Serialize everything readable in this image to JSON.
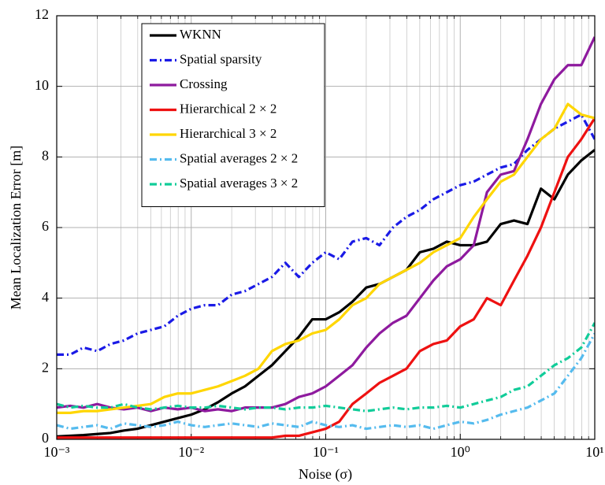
{
  "chart_data": {
    "type": "line",
    "xlabel": "Noise (σ)",
    "ylabel": "Mean Localization Error [m]",
    "xscale": "log",
    "grid": true,
    "legend": "upper left",
    "xlim": [
      0.001,
      10
    ],
    "ylim": [
      0,
      12
    ],
    "xticks": [
      {
        "value": 0.001,
        "label": "10⁻³"
      },
      {
        "value": 0.01,
        "label": "10⁻²"
      },
      {
        "value": 0.1,
        "label": "10⁻¹"
      },
      {
        "value": 1,
        "label": "10⁰"
      },
      {
        "value": 10,
        "label": "10¹"
      }
    ],
    "yticks": [
      0,
      2,
      4,
      6,
      8,
      10,
      12
    ],
    "x": [
      0.001,
      0.00126,
      0.00158,
      0.002,
      0.00251,
      0.00316,
      0.00398,
      0.00501,
      0.00631,
      0.00794,
      0.01,
      0.0126,
      0.0158,
      0.02,
      0.0251,
      0.0316,
      0.0398,
      0.0501,
      0.0631,
      0.0794,
      0.1,
      0.126,
      0.158,
      0.2,
      0.251,
      0.316,
      0.398,
      0.501,
      0.631,
      0.794,
      1,
      1.26,
      1.58,
      2,
      2.51,
      3.16,
      3.98,
      5.01,
      6.31,
      7.94,
      10
    ],
    "series": [
      {
        "name": "WKNN",
        "color": "#000000",
        "style": "solid",
        "values": [
          0.08,
          0.1,
          0.12,
          0.15,
          0.18,
          0.25,
          0.3,
          0.4,
          0.5,
          0.6,
          0.7,
          0.85,
          1.05,
          1.3,
          1.5,
          1.8,
          2.1,
          2.5,
          2.9,
          3.4,
          3.4,
          3.6,
          3.9,
          4.3,
          4.4,
          4.6,
          4.8,
          5.3,
          5.4,
          5.6,
          5.5,
          5.5,
          5.6,
          6.1,
          6.2,
          6.1,
          7.1,
          6.8,
          7.5,
          7.9,
          8.2
        ]
      },
      {
        "name": "Spatial sparsity",
        "color": "#1a1ae6",
        "style": "dashdot",
        "values": [
          2.4,
          2.4,
          2.6,
          2.5,
          2.7,
          2.8,
          3.0,
          3.1,
          3.2,
          3.5,
          3.7,
          3.8,
          3.8,
          4.1,
          4.2,
          4.4,
          4.6,
          5.0,
          4.6,
          5.0,
          5.3,
          5.1,
          5.6,
          5.7,
          5.5,
          6.0,
          6.3,
          6.5,
          6.8,
          7.0,
          7.2,
          7.3,
          7.5,
          7.7,
          7.8,
          8.2,
          8.5,
          8.8,
          9.0,
          9.2,
          8.5
        ]
      },
      {
        "name": "Crossing",
        "color": "#8e1a9e",
        "style": "solid",
        "values": [
          0.9,
          0.95,
          0.9,
          1.0,
          0.9,
          0.85,
          0.9,
          0.8,
          0.9,
          0.85,
          0.9,
          0.8,
          0.85,
          0.8,
          0.9,
          0.9,
          0.9,
          1.0,
          1.2,
          1.3,
          1.5,
          1.8,
          2.1,
          2.6,
          3.0,
          3.3,
          3.5,
          4.0,
          4.5,
          4.9,
          5.1,
          5.5,
          7.0,
          7.5,
          7.6,
          8.5,
          9.5,
          10.2,
          10.6,
          10.6,
          11.4
        ]
      },
      {
        "name": "Hierarchical 2 × 2",
        "color": "#ee1111",
        "style": "solid",
        "values": [
          0.05,
          0.05,
          0.05,
          0.05,
          0.05,
          0.05,
          0.05,
          0.05,
          0.05,
          0.05,
          0.05,
          0.05,
          0.05,
          0.05,
          0.05,
          0.05,
          0.05,
          0.1,
          0.1,
          0.2,
          0.3,
          0.5,
          1.0,
          1.3,
          1.6,
          1.8,
          2.0,
          2.5,
          2.7,
          2.8,
          3.2,
          3.4,
          4.0,
          3.8,
          4.5,
          5.2,
          6.0,
          7.0,
          8.0,
          8.5,
          9.1
        ]
      },
      {
        "name": "Hierarchical 3 × 2",
        "color": "#ffd600",
        "style": "solid",
        "values": [
          0.75,
          0.75,
          0.8,
          0.8,
          0.85,
          0.9,
          0.95,
          1.0,
          1.2,
          1.3,
          1.3,
          1.4,
          1.5,
          1.65,
          1.8,
          2.0,
          2.5,
          2.7,
          2.8,
          3.0,
          3.1,
          3.4,
          3.8,
          4.0,
          4.4,
          4.6,
          4.8,
          5.0,
          5.3,
          5.5,
          5.7,
          6.3,
          6.8,
          7.3,
          7.5,
          8.0,
          8.5,
          8.8,
          9.5,
          9.2,
          9.1
        ]
      },
      {
        "name": "Spatial averages 2 × 2",
        "color": "#55bbee",
        "style": "dashdot",
        "values": [
          0.4,
          0.3,
          0.35,
          0.4,
          0.3,
          0.45,
          0.4,
          0.35,
          0.4,
          0.5,
          0.4,
          0.35,
          0.4,
          0.45,
          0.4,
          0.35,
          0.45,
          0.4,
          0.35,
          0.5,
          0.4,
          0.35,
          0.4,
          0.3,
          0.35,
          0.4,
          0.35,
          0.4,
          0.3,
          0.4,
          0.5,
          0.45,
          0.55,
          0.7,
          0.8,
          0.9,
          1.1,
          1.3,
          1.8,
          2.3,
          3.0
        ]
      },
      {
        "name": "Spatial averages 3 × 2",
        "color": "#11cc99",
        "style": "dashdot",
        "values": [
          1.0,
          0.9,
          0.95,
          0.9,
          0.9,
          1.0,
          0.9,
          0.85,
          0.9,
          0.95,
          0.9,
          0.9,
          0.95,
          0.9,
          0.85,
          0.9,
          0.9,
          0.85,
          0.9,
          0.9,
          0.95,
          0.9,
          0.85,
          0.8,
          0.85,
          0.9,
          0.85,
          0.9,
          0.9,
          0.95,
          0.9,
          1.0,
          1.1,
          1.2,
          1.4,
          1.5,
          1.8,
          2.1,
          2.3,
          2.6,
          3.3
        ]
      }
    ]
  }
}
